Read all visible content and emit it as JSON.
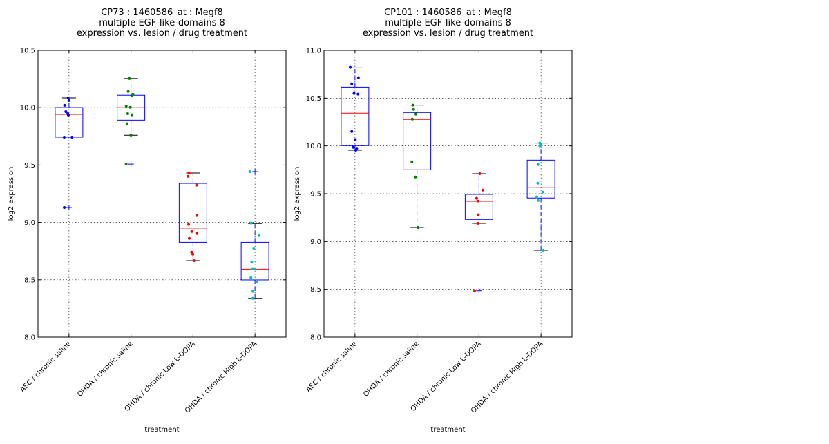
{
  "chart_data": [
    {
      "type": "box",
      "title": [
        "CP73 : 1460586_at : Megf8",
        "multiple EGF-like-domains 8",
        "expression vs. lesion / drug treatment"
      ],
      "xlabel": "treatment",
      "ylabel": "log2 expression",
      "ylim": [
        8.0,
        10.5
      ],
      "yticks": [
        "8.0",
        "8.5",
        "9.0",
        "9.5",
        "10.0",
        "10.5"
      ],
      "grid": true,
      "categories": [
        "ASC / chronic saline",
        "OHDA / chronic saline",
        "OHDA / chronic Low L-DOPA",
        "OHDA / chronic High L-DOPA"
      ],
      "boxes": [
        {
          "q1": 9.743,
          "median": 9.941,
          "q3": 10.001,
          "whisker_low": 9.743,
          "whisker_high": 10.085,
          "outliers": [
            9.13
          ],
          "color": "#0000ff",
          "points": [
            10.085,
            10.061,
            10.02,
            9.965,
            9.947,
            9.935,
            9.743,
            9.743,
            9.13
          ]
        },
        {
          "q1": 9.891,
          "median": 10.0,
          "q3": 10.108,
          "whisker_low": 9.759,
          "whisker_high": 10.254,
          "outliers": [
            9.508
          ],
          "color": "#008000",
          "points": [
            10.254,
            10.141,
            10.117,
            10.103,
            10.013,
            10.003,
            9.947,
            9.937,
            9.859,
            9.761,
            9.508
          ]
        },
        {
          "q1": 8.827,
          "median": 8.95,
          "q3": 9.34,
          "whisker_low": 8.667,
          "whisker_high": 9.43,
          "outliers": [],
          "color": "#ff0000",
          "points": [
            9.432,
            9.402,
            9.324,
            9.06,
            8.982,
            8.92,
            8.903,
            8.861,
            8.741,
            8.723,
            8.667
          ]
        },
        {
          "q1": 8.499,
          "median": 8.593,
          "q3": 8.827,
          "whisker_low": 8.338,
          "whisker_high": 8.99,
          "outliers": [
            9.442
          ],
          "color": "#00bfbf",
          "points": [
            9.442,
            8.994,
            8.885,
            8.775,
            8.655,
            8.597,
            8.597,
            8.519,
            8.481,
            8.399,
            8.338
          ]
        }
      ]
    },
    {
      "type": "box",
      "title": [
        "CP101 : 1460586_at : Megf8",
        "multiple EGF-like-domains 8",
        "expression vs. lesion / drug treatment"
      ],
      "xlabel": "treatment",
      "ylabel": "log2 expression",
      "ylim": [
        8.0,
        11.0
      ],
      "yticks": [
        "8.0",
        "8.5",
        "9.0",
        "9.5",
        "10.0",
        "10.5",
        "11.0"
      ],
      "grid": true,
      "categories": [
        "ASC / chronic saline",
        "OHDA / chronic saline",
        "OHDA / chronic Low L-DOPA",
        "OHDA / chronic High L-DOPA"
      ],
      "boxes": [
        {
          "q1": 10.003,
          "median": 10.342,
          "q3": 10.615,
          "whisker_low": 9.954,
          "whisker_high": 10.817,
          "outliers": [],
          "color": "#0000ff",
          "points": [
            10.822,
            10.714,
            10.649,
            10.541,
            10.548,
            10.151,
            10.065,
            9.985,
            9.974,
            9.954
          ]
        },
        {
          "q1": 9.75,
          "median": 10.277,
          "q3": 10.349,
          "whisker_low": 9.147,
          "whisker_high": 10.426,
          "outliers": [],
          "color": "#008000",
          "points": [
            10.426,
            10.382,
            10.332,
            10.281,
            9.834,
            9.675,
            9.147
          ]
        },
        {
          "q1": 9.231,
          "median": 9.421,
          "q3": 9.493,
          "whisker_low": 9.19,
          "whisker_high": 9.709,
          "outliers": [
            8.485
          ],
          "color": "#ff0000",
          "points": [
            9.709,
            9.538,
            9.452,
            9.423,
            9.279,
            9.19,
            8.485
          ]
        },
        {
          "q1": 9.455,
          "median": 9.563,
          "q3": 9.851,
          "whisker_low": 8.909,
          "whisker_high": 10.029,
          "outliers": [],
          "color": "#00bfbf",
          "points": [
            10.029,
            10.0,
            9.805,
            9.61,
            9.517,
            9.467,
            9.43,
            8.909
          ]
        }
      ]
    }
  ]
}
